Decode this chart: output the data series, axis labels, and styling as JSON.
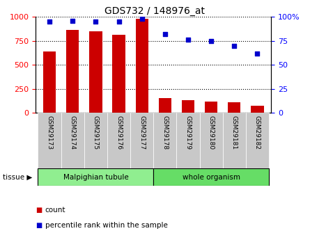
{
  "title": "GDS732 / 148976_at",
  "samples": [
    "GSM29173",
    "GSM29174",
    "GSM29175",
    "GSM29176",
    "GSM29177",
    "GSM29178",
    "GSM29179",
    "GSM29180",
    "GSM29181",
    "GSM29182"
  ],
  "counts": [
    640,
    860,
    850,
    810,
    980,
    155,
    130,
    120,
    110,
    75
  ],
  "percentiles": [
    95,
    96,
    95,
    95,
    98,
    82,
    76,
    75,
    70,
    62
  ],
  "tissue_labels": [
    "Malpighian tubule",
    "whole organism"
  ],
  "bar_color": "#CC0000",
  "dot_color": "#0000CC",
  "bg_color_malpigh": "#90EE90",
  "bg_color_whole": "#66DD66",
  "tick_bg_color": "#C8C8C8",
  "ylim_left": [
    0,
    1000
  ],
  "ylim_right": [
    0,
    100
  ],
  "yticks_left": [
    0,
    250,
    500,
    750,
    1000
  ],
  "yticks_right": [
    0,
    25,
    50,
    75,
    100
  ],
  "legend_count_label": "count",
  "legend_pct_label": "percentile rank within the sample",
  "tissue_arrow_label": "tissue"
}
